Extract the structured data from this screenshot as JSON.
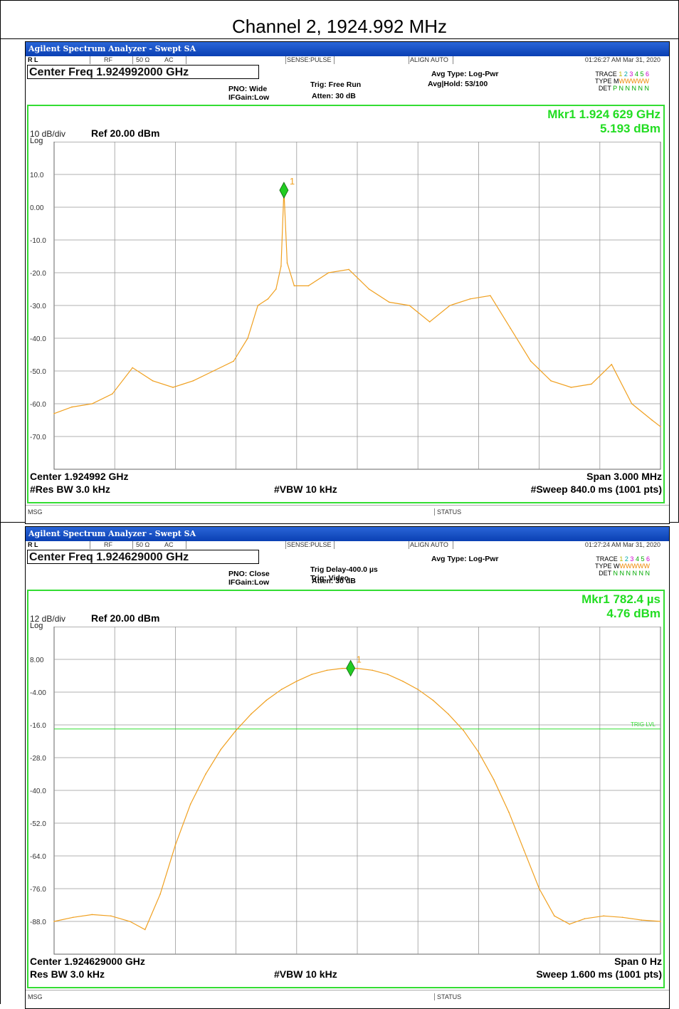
{
  "page_title": "Channel 2, 1924.992 MHz",
  "screens": [
    {
      "app_title": "Agilent Spectrum Analyzer - Swept SA",
      "info": {
        "rl": "R L",
        "rf": "RF",
        "ohm": "50 Ω",
        "ac": "AC",
        "sense": "SENSE:PULSE",
        "align": "ALIGN AUTO",
        "time": "01:26:27 AM Mar 31, 2020"
      },
      "center_freq": "Center Freq 1.924992000 GHz",
      "pno": "PNO: Wide",
      "ifgain": "IFGain:Low",
      "trig1": "Trig: Free Run",
      "trig2": "",
      "atten": "Atten: 30 dB",
      "avg_type": "Avg Type: Log-Pwr",
      "avg_hold": "Avg|Hold: 53/100",
      "trace_row": {
        "trace": "TRACE",
        "type": "TYPE",
        "det": "DET",
        "type_val": "M",
        "det_val": "P N N N N N"
      },
      "marker_line1": "Mkr1 1.924 629 GHz",
      "marker_line2": "5.193 dBm",
      "scale": "10 dB/div",
      "log": "Log",
      "ref": "Ref 20.00 dBm",
      "bottom_left1": "Center 1.924992 GHz",
      "bottom_left2": "#Res BW 3.0 kHz",
      "bottom_mid": "#VBW 10 kHz",
      "bottom_right1": "Span 3.000 MHz",
      "bottom_right2": "#Sweep  840.0 ms (1001 pts)",
      "msg": "MSG",
      "status": "STATUS"
    },
    {
      "app_title": "Agilent Spectrum Analyzer - Swept SA",
      "info": {
        "rl": "R L",
        "rf": "RF",
        "ohm": "50 Ω",
        "ac": "AC",
        "sense": "SENSE:PULSE",
        "align": "ALIGN AUTO",
        "time": "01:27:24 AM Mar 31, 2020"
      },
      "center_freq": "Center Freq 1.924629000 GHz",
      "pno": "PNO: Close",
      "ifgain": "IFGain:Low",
      "trig1": "Trig Delay-400.0 µs",
      "trig2": "Trig: Video",
      "atten": "Atten: 30 dB",
      "avg_type": "Avg Type: Log-Pwr",
      "avg_hold": "",
      "trace_row": {
        "trace": "TRACE",
        "type": "TYPE",
        "det": "DET",
        "type_val": "W",
        "det_val": "N N N N N N"
      },
      "marker_line1": "Mkr1 782.4 µs",
      "marker_line2": "4.76 dBm",
      "scale": "12 dB/div",
      "log": "Log",
      "ref": "Ref 20.00 dBm",
      "bottom_left1": "Center 1.924629000 GHz",
      "bottom_left2": "Res BW 3.0 kHz",
      "bottom_mid": "#VBW 10 kHz",
      "bottom_right1": "Span 0 Hz",
      "bottom_right2": "Sweep  1.600 ms (1001 pts)",
      "msg": "MSG",
      "status": "STATUS"
    }
  ],
  "chart_data": [
    {
      "type": "line",
      "ylabel": "dBm",
      "yticks": [
        "10.0",
        "0.00",
        "-10.0",
        "-20.0",
        "-30.0",
        "-40.0",
        "-50.0",
        "-60.0",
        "-70.0"
      ],
      "ylim": [
        -80,
        20
      ],
      "xlim": [
        1.923492,
        1.926492
      ],
      "x_unit": "GHz",
      "grid": true,
      "trace_color": "#f0a020",
      "marker": {
        "label": "1",
        "x": 1.924629,
        "y": 5.193
      },
      "series": [
        {
          "x": [
            1.923492,
            1.92358,
            1.92368,
            1.92378,
            1.92388,
            1.92398,
            1.92408,
            1.92418,
            1.92428,
            1.92438,
            1.92445,
            1.9245,
            1.92455,
            1.92459,
            1.924615,
            1.924629,
            1.924645,
            1.92468,
            1.92475,
            1.92485,
            1.92495,
            1.92505,
            1.92515,
            1.92525,
            1.92535,
            1.92545,
            1.92555,
            1.92565,
            1.92575,
            1.92585,
            1.92595,
            1.92605,
            1.92615,
            1.92625,
            1.92635,
            1.92645,
            1.926492
          ],
          "y": [
            -63,
            -61,
            -60,
            -57,
            -49,
            -53,
            -55,
            -53,
            -50,
            -47,
            -40,
            -30,
            -28,
            -25,
            -18,
            5.193,
            -17,
            -24,
            -24,
            -20,
            -19,
            -25,
            -29,
            -30,
            -35,
            -30,
            -28,
            -27,
            -37,
            -47,
            -53,
            -55,
            -54,
            -48,
            -60,
            -65,
            -67
          ]
        }
      ]
    },
    {
      "type": "line",
      "ylabel": "dBm",
      "yticks": [
        "8.00",
        "-4.00",
        "-16.0",
        "-28.0",
        "-40.0",
        "-52.0",
        "-64.0",
        "-76.0",
        "-88.0"
      ],
      "ylim": [
        -100,
        20
      ],
      "xlim": [
        0,
        1.6
      ],
      "x_unit": "ms",
      "grid": true,
      "trace_color": "#f0a020",
      "trig_level": {
        "label": "TRIG LVL",
        "y": -17.5
      },
      "marker": {
        "label": "1",
        "x": 0.7824,
        "y": 4.76
      },
      "series": [
        {
          "x": [
            0,
            0.05,
            0.1,
            0.15,
            0.2,
            0.24,
            0.28,
            0.32,
            0.36,
            0.4,
            0.44,
            0.48,
            0.52,
            0.56,
            0.6,
            0.64,
            0.68,
            0.72,
            0.76,
            0.8,
            0.84,
            0.88,
            0.92,
            0.96,
            1.0,
            1.04,
            1.08,
            1.12,
            1.16,
            1.2,
            1.24,
            1.28,
            1.32,
            1.36,
            1.4,
            1.45,
            1.5,
            1.55,
            1.6
          ],
          "y": [
            -88,
            -86.5,
            -85.5,
            -86,
            -88,
            -91,
            -78,
            -60,
            -45,
            -34,
            -25,
            -18,
            -12,
            -7,
            -3,
            0,
            2.5,
            4,
            4.7,
            4.7,
            4,
            2.5,
            0,
            -3,
            -7,
            -12,
            -18,
            -26,
            -36,
            -48,
            -62,
            -76,
            -86,
            -89,
            -87,
            -86,
            -86.5,
            -87.5,
            -88
          ]
        }
      ]
    }
  ]
}
